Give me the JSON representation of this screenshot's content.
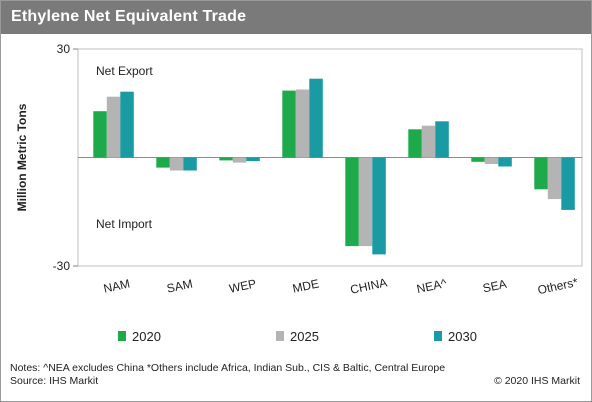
{
  "header": {
    "title": "Ethylene Net Equivalent Trade"
  },
  "chart_data": {
    "type": "bar",
    "title": "Ethylene Net Equivalent Trade",
    "ylabel": "Million Metric Tons",
    "xlabel": "",
    "ylim": [
      -30,
      30
    ],
    "y_ticks": [
      "30",
      "-30"
    ],
    "categories": [
      "NAM",
      "SAM",
      "WEP",
      "MDE",
      "CHINA",
      "NEA^",
      "SEA",
      "Others*"
    ],
    "series": [
      {
        "name": "2020",
        "color": "#1eaa4b",
        "values": [
          12.8,
          -2.8,
          -0.8,
          18.5,
          -24.5,
          7.8,
          -1.2,
          -8.8
        ]
      },
      {
        "name": "2025",
        "color": "#b4b4b4",
        "values": [
          16.8,
          -3.6,
          -1.4,
          18.8,
          -24.5,
          8.8,
          -1.8,
          -11.5
        ]
      },
      {
        "name": "2030",
        "color": "#1a9ba3",
        "values": [
          18.2,
          -3.6,
          -1.0,
          21.8,
          -26.8,
          10.0,
          -2.5,
          -14.5
        ]
      }
    ],
    "annotations": {
      "top": "Net Export",
      "bottom": "Net Import"
    },
    "grid": false,
    "legend_position": "bottom"
  },
  "footer": {
    "notes": "Notes: ^NEA excludes China *Others include Africa, Indian Sub., CIS & Baltic, Central Europe",
    "source": "Source: IHS Markit",
    "copyright": "© 2020 IHS Markit"
  }
}
